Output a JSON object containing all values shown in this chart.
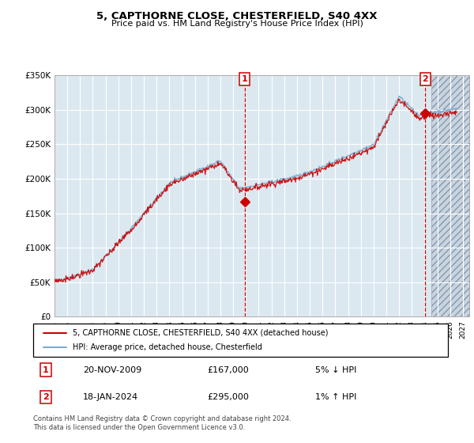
{
  "title": "5, CAPTHORNE CLOSE, CHESTERFIELD, S40 4XX",
  "subtitle": "Price paid vs. HM Land Registry's House Price Index (HPI)",
  "ylim": [
    0,
    350000
  ],
  "yticks": [
    0,
    50000,
    100000,
    150000,
    200000,
    250000,
    300000,
    350000
  ],
  "ytick_labels": [
    "£0",
    "£50K",
    "£100K",
    "£150K",
    "£200K",
    "£250K",
    "£300K",
    "£350K"
  ],
  "xlim_start": 1995.0,
  "xlim_end": 2027.5,
  "sale1_year": 2009.896,
  "sale1_price": 167000,
  "sale1_date": "20-NOV-2009",
  "sale1_pct": "5% ↓ HPI",
  "sale2_year": 2024.046,
  "sale2_price": 295000,
  "sale2_date": "18-JAN-2024",
  "sale2_pct": "1% ↑ HPI",
  "legend1": "5, CAPTHORNE CLOSE, CHESTERFIELD, S40 4XX (detached house)",
  "legend2": "HPI: Average price, detached house, Chesterfield",
  "footnote": "Contains HM Land Registry data © Crown copyright and database right 2024.\nThis data is licensed under the Open Government Licence v3.0.",
  "line_color_red": "#cc0000",
  "line_color_blue": "#7aadcc",
  "background_plot": "#dce8f0",
  "grid_color": "#ffffff",
  "border_color": "#aaaaaa",
  "title_fontsize": 9.5,
  "subtitle_fontsize": 8.0
}
